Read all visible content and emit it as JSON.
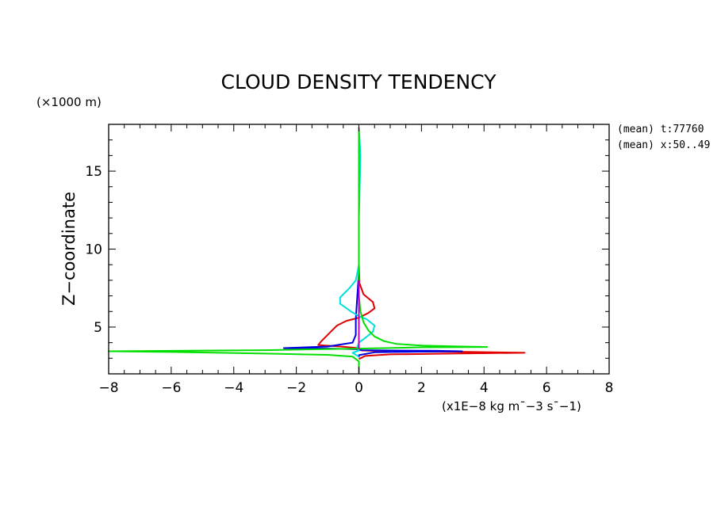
{
  "chart_data": {
    "type": "line",
    "title": "CLOUD DENSITY TENDENCY",
    "y_unit_label": "(×1000 m)",
    "ylabel": "Z−coordinate",
    "x_unit_label": "(x1E−8 kg m¯−3 s¯−1)",
    "annotations": [
      "(mean) t:77760",
      "(mean) x:50..49"
    ],
    "xlim": [
      -8,
      8
    ],
    "ylim": [
      2,
      18
    ],
    "x_ticks": [
      -8,
      -6,
      -4,
      -2,
      0,
      2,
      4,
      6,
      8
    ],
    "y_ticks": [
      5,
      10,
      15
    ],
    "grid": false,
    "series": [
      {
        "color": "#e00000",
        "points": [
          [
            0,
            17.8
          ],
          [
            0,
            9
          ],
          [
            0.02,
            7.8
          ],
          [
            0.15,
            7.1
          ],
          [
            0.45,
            6.6
          ],
          [
            0.5,
            6.2
          ],
          [
            0.3,
            5.9
          ],
          [
            0,
            5.6
          ],
          [
            -0.4,
            5.4
          ],
          [
            -0.7,
            5.1
          ],
          [
            -0.9,
            4.7
          ],
          [
            -1.05,
            4.4
          ],
          [
            -1.2,
            4.1
          ],
          [
            -1.3,
            3.85
          ],
          [
            -0.6,
            3.75
          ],
          [
            0,
            3.65
          ],
          [
            0.05,
            3.55
          ],
          [
            0.1,
            3.5
          ],
          [
            1,
            3.45
          ],
          [
            3,
            3.42
          ],
          [
            5.3,
            3.35
          ],
          [
            3,
            3.3
          ],
          [
            1,
            3.25
          ],
          [
            0.2,
            3.15
          ],
          [
            0,
            2.95
          ]
        ]
      },
      {
        "color": "#0000e0",
        "points": [
          [
            0,
            17.8
          ],
          [
            0,
            8.5
          ],
          [
            -0.05,
            7
          ],
          [
            -0.1,
            5.5
          ],
          [
            -0.1,
            4.5
          ],
          [
            -0.2,
            4
          ],
          [
            -1,
            3.75
          ],
          [
            -2.4,
            3.65
          ],
          [
            -1,
            3.62
          ],
          [
            0,
            3.58
          ],
          [
            0.05,
            3.52
          ],
          [
            1,
            3.5
          ],
          [
            2.5,
            3.48
          ],
          [
            3.3,
            3.45
          ],
          [
            2,
            3.42
          ],
          [
            0.5,
            3.38
          ],
          [
            0,
            3.2
          ],
          [
            0,
            3.05
          ]
        ]
      },
      {
        "color": "#00e0e0",
        "points": [
          [
            0,
            17.8
          ],
          [
            0.05,
            16
          ],
          [
            0,
            12
          ],
          [
            0,
            9
          ],
          [
            -0.1,
            8
          ],
          [
            -0.3,
            7.5
          ],
          [
            -0.6,
            6.9
          ],
          [
            -0.6,
            6.5
          ],
          [
            -0.25,
            6
          ],
          [
            0,
            5.7
          ],
          [
            0.25,
            5.5
          ],
          [
            0.5,
            5.1
          ],
          [
            0.45,
            4.7
          ],
          [
            0.2,
            4.3
          ],
          [
            0,
            4
          ],
          [
            -0.05,
            3.7
          ],
          [
            0,
            3.5
          ],
          [
            -0.2,
            3.35
          ],
          [
            0,
            3.1
          ]
        ]
      },
      {
        "color": "#00e000",
        "points": [
          [
            0,
            17.8
          ],
          [
            0,
            14
          ],
          [
            0,
            9
          ],
          [
            0,
            7
          ],
          [
            0.05,
            6
          ],
          [
            0.15,
            5.3
          ],
          [
            0.3,
            4.8
          ],
          [
            0.5,
            4.4
          ],
          [
            0.8,
            4.1
          ],
          [
            1.2,
            3.92
          ],
          [
            2,
            3.82
          ],
          [
            3,
            3.77
          ],
          [
            4.1,
            3.72
          ],
          [
            2,
            3.7
          ],
          [
            0,
            3.62
          ],
          [
            -3,
            3.52
          ],
          [
            -8,
            3.45
          ],
          [
            -6,
            3.4
          ],
          [
            -3,
            3.3
          ],
          [
            -1,
            3.22
          ],
          [
            -0.2,
            3.1
          ],
          [
            0,
            2.8
          ],
          [
            0,
            2
          ]
        ]
      },
      {
        "color": "#c000c0",
        "points": [
          [
            0,
            8
          ],
          [
            0,
            4.5
          ],
          [
            0,
            3.6
          ]
        ]
      }
    ]
  }
}
